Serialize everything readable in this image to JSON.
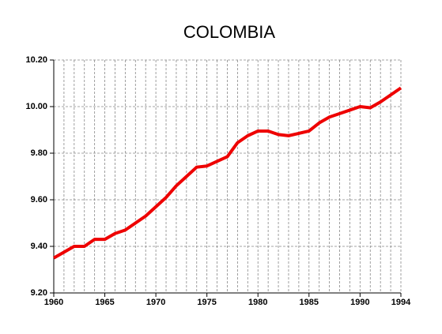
{
  "chart_data": {
    "type": "line",
    "title": "COLOMBIA",
    "x": [
      1960,
      1961,
      1962,
      1963,
      1964,
      1965,
      1966,
      1967,
      1968,
      1969,
      1970,
      1971,
      1972,
      1973,
      1974,
      1975,
      1976,
      1977,
      1978,
      1979,
      1980,
      1981,
      1982,
      1983,
      1984,
      1985,
      1986,
      1987,
      1988,
      1989,
      1990,
      1991,
      1992,
      1993,
      1994
    ],
    "series": [
      {
        "color": "#ee0000",
        "values": [
          9.35,
          9.375,
          9.4,
          9.4,
          9.43,
          9.43,
          9.455,
          9.47,
          9.5,
          9.53,
          9.57,
          9.61,
          9.66,
          9.7,
          9.74,
          9.745,
          9.765,
          9.785,
          9.845,
          9.875,
          9.895,
          9.895,
          9.88,
          9.875,
          9.885,
          9.895,
          9.93,
          9.955,
          9.97,
          9.985,
          10.0,
          9.995,
          10.02,
          10.05,
          10.08
        ]
      }
    ],
    "xlim": [
      1960,
      1994
    ],
    "xticks": [
      1960,
      1965,
      1970,
      1975,
      1980,
      1985,
      1990,
      1994
    ],
    "ylim": [
      9.2,
      10.2
    ],
    "yticks": [
      {
        "value": 9.2,
        "label": "9.20"
      },
      {
        "value": 9.4,
        "label": "9.40"
      },
      {
        "value": 9.6,
        "label": "9.60"
      },
      {
        "value": 9.8,
        "label": "9.80"
      },
      {
        "value": 10.0,
        "label": "10.00"
      },
      {
        "value": 10.2,
        "label": "10.20"
      }
    ],
    "grid": true
  }
}
